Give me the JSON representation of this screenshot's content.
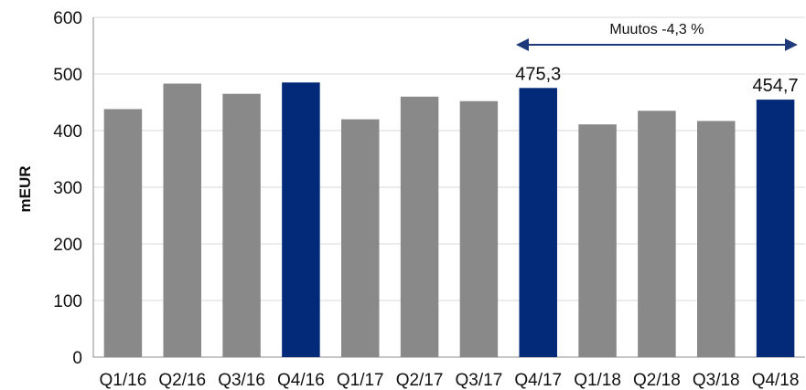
{
  "chart_data": {
    "type": "bar",
    "ylabel": "mEUR",
    "ylim": [
      0,
      600
    ],
    "yticks": [
      0,
      100,
      200,
      300,
      400,
      500,
      600
    ],
    "grid": true,
    "categories": [
      "Q1/16",
      "Q2/16",
      "Q3/16",
      "Q4/16",
      "Q1/17",
      "Q2/17",
      "Q3/17",
      "Q4/17",
      "Q1/18",
      "Q2/18",
      "Q3/18",
      "Q4/18"
    ],
    "values": [
      438,
      483,
      465,
      485,
      420,
      460,
      452,
      475.3,
      411,
      435,
      417,
      454.7
    ],
    "data_labels": [
      {
        "index": 7,
        "text": "475,3"
      },
      {
        "index": 11,
        "text": "454,7"
      }
    ],
    "highlight_indices": [
      3,
      7,
      11
    ],
    "colors": {
      "default": "#898989",
      "highlight": "#032a78",
      "arrow": "#1f3a7a",
      "grid": "#d9d9d9"
    },
    "annotation": {
      "text": "Muutos -4,3 %",
      "from_index": 7,
      "to_index": 11
    }
  }
}
